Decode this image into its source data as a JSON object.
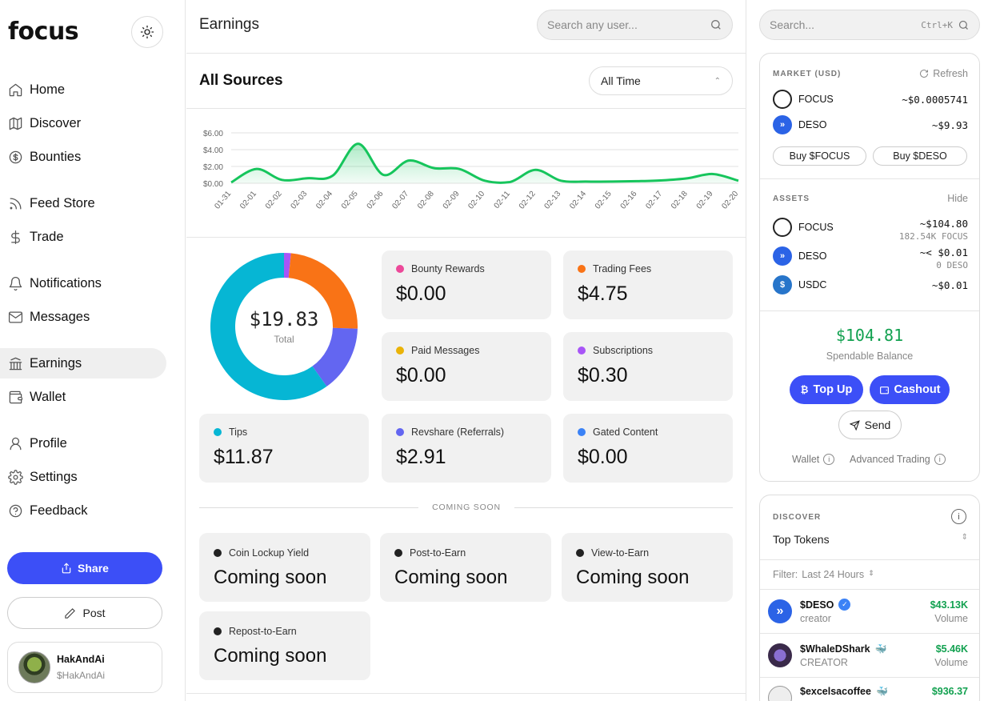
{
  "sidebar": {
    "logo": "focus",
    "nav": [
      {
        "label": "Home",
        "icon": "home-icon"
      },
      {
        "label": "Discover",
        "icon": "map-icon"
      },
      {
        "label": "Bounties",
        "icon": "dollar-circle-icon"
      },
      {
        "label": "Feed Store",
        "icon": "rss-icon"
      },
      {
        "label": "Trade",
        "icon": "dollar-icon"
      },
      {
        "label": "Notifications",
        "icon": "bell-icon"
      },
      {
        "label": "Messages",
        "icon": "mail-icon"
      },
      {
        "label": "Earnings",
        "icon": "bank-icon"
      },
      {
        "label": "Wallet",
        "icon": "wallet-icon"
      },
      {
        "label": "Profile",
        "icon": "user-icon"
      },
      {
        "label": "Settings",
        "icon": "gear-icon"
      },
      {
        "label": "Feedback",
        "icon": "help-icon"
      }
    ],
    "active": "Earnings",
    "share_label": "Share",
    "post_label": "Post",
    "user": {
      "name": "HakAndAi",
      "handle": "$HakAndAi"
    }
  },
  "main": {
    "title": "Earnings",
    "search_placeholder": "Search any user...",
    "section_title": "All Sources",
    "time_filter": "All Time",
    "total": "$19.83",
    "total_label": "Total",
    "cards": [
      {
        "label": "Bounty Rewards",
        "value": "$0.00",
        "color": "#ec4899"
      },
      {
        "label": "Trading Fees",
        "value": "$4.75",
        "color": "#f97316"
      },
      {
        "label": "Paid Messages",
        "value": "$0.00",
        "color": "#eab308"
      },
      {
        "label": "Subscriptions",
        "value": "$0.30",
        "color": "#a855f7"
      },
      {
        "label": "Tips",
        "value": "$11.87",
        "color": "#06b6d4"
      },
      {
        "label": "Revshare (Referrals)",
        "value": "$2.91",
        "color": "#6366f1"
      },
      {
        "label": "Gated Content",
        "value": "$0.00",
        "color": "#3b82f6"
      }
    ],
    "coming_soon_label": "COMING SOON",
    "coming_soon": [
      {
        "label": "Coin Lockup Yield",
        "value": "Coming soon"
      },
      {
        "label": "Post-to-Earn",
        "value": "Coming soon"
      },
      {
        "label": "View-to-Earn",
        "value": "Coming soon"
      },
      {
        "label": "Repost-to-Earn",
        "value": "Coming soon"
      }
    ]
  },
  "chart_data": [
    {
      "type": "area",
      "x": [
        "01-31",
        "02-01",
        "02-02",
        "02-03",
        "02-04",
        "02-05",
        "02-06",
        "02-07",
        "02-08",
        "02-09",
        "02-10",
        "02-11",
        "02-12",
        "02-13",
        "02-14",
        "02-15",
        "02-16",
        "02-17",
        "02-18",
        "02-19",
        "02-20"
      ],
      "y_ticks": [
        "$0.00",
        "$2.00",
        "$4.00",
        "$6.00"
      ],
      "ylim": [
        0,
        6
      ],
      "values": [
        0.1,
        1.7,
        0.4,
        0.6,
        0.9,
        4.7,
        1.0,
        2.7,
        1.8,
        1.7,
        0.3,
        0.15,
        1.6,
        0.3,
        0.2,
        0.2,
        0.25,
        0.35,
        0.6,
        1.1,
        0.3
      ],
      "color": "#16c55c"
    },
    {
      "type": "pie",
      "labels": [
        "Subscriptions",
        "Trading Fees",
        "Revshare (Referrals)",
        "Tips"
      ],
      "values": [
        0.3,
        4.75,
        2.91,
        11.87
      ],
      "colors": [
        "#a855f7",
        "#f97316",
        "#6366f1",
        "#06b6d4"
      ]
    }
  ],
  "right": {
    "search_placeholder": "Search...",
    "shortcut": "Ctrl+K",
    "market_title": "MARKET (USD)",
    "refresh_label": "Refresh",
    "market": [
      {
        "name": "FOCUS",
        "price": "~$0.0005741"
      },
      {
        "name": "DESO",
        "price": "~$9.93"
      }
    ],
    "buy_focus": "Buy $FOCUS",
    "buy_deso": "Buy $DESO",
    "assets_title": "ASSETS",
    "hide_label": "Hide",
    "assets": [
      {
        "name": "FOCUS",
        "usd": "~$104.80",
        "amount": "182.54K FOCUS"
      },
      {
        "name": "DESO",
        "usd": "~< $0.01",
        "amount": "0 DESO"
      },
      {
        "name": "USDC",
        "usd": "~$0.01",
        "amount": ""
      }
    ],
    "balance": "$104.81",
    "balance_label": "Spendable Balance",
    "topup_label": "Top Up",
    "cashout_label": "Cashout",
    "send_label": "Send",
    "wallet_link": "Wallet",
    "advanced_link": "Advanced Trading",
    "discover_title": "DISCOVER",
    "discover_select": "Top Tokens",
    "filter_label": "Filter:",
    "filter_value": "Last 24 Hours",
    "tokens": [
      {
        "name": "$DESO",
        "sub": "creator",
        "value": "$43.13K",
        "metric": "Volume",
        "badge": "verified-icon"
      },
      {
        "name": "$WhaleDShark",
        "sub": "CREATOR",
        "value": "$5.46K",
        "metric": "Volume",
        "badge": "whale-icon"
      },
      {
        "name": "$excelsacoffee",
        "sub": "",
        "value": "$936.37",
        "metric": "",
        "badge": "whale-icon"
      }
    ]
  }
}
